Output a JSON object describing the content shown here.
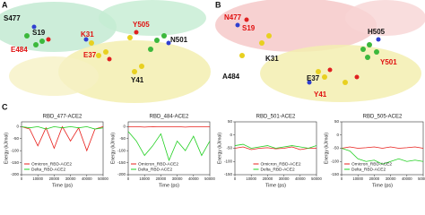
{
  "panels": {
    "A": {
      "label": "A",
      "residues": [
        "S477",
        "S19",
        "K31",
        "Y505",
        "N501",
        "E484",
        "E37",
        "Y41"
      ]
    },
    "B": {
      "label": "B",
      "residues": [
        "N477",
        "S19",
        "K31",
        "H505",
        "Y501",
        "A484",
        "E37",
        "Y41"
      ]
    },
    "C": {
      "label": "C"
    }
  },
  "chart_data": [
    {
      "type": "line",
      "title": "RBD_477-ACE2",
      "xlabel": "Time (ps)",
      "ylabel": "Energy (kJ/mol)",
      "x": [
        0,
        5000,
        10000,
        15000,
        20000,
        25000,
        30000,
        35000,
        40000,
        45000,
        50000
      ],
      "xlim": [
        0,
        50000
      ],
      "xticks": [
        0,
        10000,
        20000,
        30000,
        40000,
        50000
      ],
      "ylim": [
        -200,
        20
      ],
      "yticks": [
        -200,
        -150,
        -100,
        -50,
        0
      ],
      "legend": "lower left",
      "series": [
        {
          "name": "Omicron_RBD-ACE2",
          "color": "#e8201c",
          "values": [
            0,
            -10,
            -80,
            -5,
            -90,
            0,
            -60,
            -5,
            -100,
            -10,
            0
          ]
        },
        {
          "name": "Delta_RBD-ACE2",
          "color": "#22d022",
          "values": [
            0,
            -5,
            0,
            -10,
            0,
            -5,
            0,
            -5,
            0,
            -10,
            -5
          ]
        }
      ]
    },
    {
      "type": "line",
      "title": "RBD_484-ACE2",
      "xlabel": "Time (ps)",
      "ylabel": "Energy (kJ/mol)",
      "x": [
        0,
        5000,
        10000,
        15000,
        20000,
        25000,
        30000,
        35000,
        40000,
        45000,
        50000
      ],
      "xlim": [
        0,
        50000
      ],
      "xticks": [
        0,
        10000,
        20000,
        30000,
        40000,
        50000
      ],
      "ylim": [
        -200,
        20
      ],
      "yticks": [
        -200,
        -150,
        -100,
        -50,
        0
      ],
      "legend": "lower left",
      "series": [
        {
          "name": "Omicron_RBD-ACE2",
          "color": "#e8201c",
          "values": [
            0,
            0,
            -2,
            0,
            -1,
            0,
            0,
            -2,
            0,
            0,
            0
          ]
        },
        {
          "name": "Delta_RBD-ACE2",
          "color": "#22d022",
          "values": [
            -20,
            -60,
            -120,
            -80,
            -30,
            -140,
            -60,
            -100,
            -40,
            -120,
            -60
          ]
        }
      ]
    },
    {
      "type": "line",
      "title": "RBD_501-ACE2",
      "xlabel": "Time (ps)",
      "ylabel": "Energy (kJ/mol)",
      "x": [
        0,
        5000,
        10000,
        15000,
        20000,
        25000,
        30000,
        35000,
        40000,
        45000,
        50000
      ],
      "xlim": [
        0,
        50000
      ],
      "xticks": [
        0,
        10000,
        20000,
        30000,
        40000,
        50000
      ],
      "ylim": [
        -150,
        50
      ],
      "yticks": [
        -150,
        -100,
        -50,
        0,
        50
      ],
      "legend": "lower center",
      "series": [
        {
          "name": "Omicron_RBD-ACE2",
          "color": "#e8201c",
          "values": [
            -50,
            -45,
            -55,
            -50,
            -48,
            -52,
            -50,
            -45,
            -55,
            -50,
            -50
          ]
        },
        {
          "name": "Delta_RBD-ACE2",
          "color": "#22d022",
          "values": [
            -40,
            -35,
            -50,
            -45,
            -40,
            -50,
            -45,
            -40,
            -45,
            -50,
            -40
          ]
        }
      ]
    },
    {
      "type": "line",
      "title": "RBD_505-ACE2",
      "xlabel": "Time (ps)",
      "ylabel": "Energy (kJ/mol)",
      "x": [
        0,
        5000,
        10000,
        15000,
        20000,
        25000,
        30000,
        35000,
        40000,
        45000,
        50000
      ],
      "xlim": [
        0,
        50000
      ],
      "xticks": [
        0,
        10000,
        20000,
        30000,
        40000,
        50000
      ],
      "ylim": [
        -150,
        50
      ],
      "yticks": [
        -150,
        -100,
        -50,
        0,
        50
      ],
      "legend": "lower left",
      "series": [
        {
          "name": "Omicron_RBD-ACE2",
          "color": "#e8201c",
          "values": [
            -50,
            -45,
            -50,
            -48,
            -45,
            -50,
            -45,
            -50,
            -48,
            -45,
            -50
          ]
        },
        {
          "name": "Delta_RBD-ACE2",
          "color": "#22d022",
          "values": [
            -50,
            -60,
            -90,
            -100,
            -95,
            -110,
            -100,
            -90,
            -100,
            -95,
            -100
          ]
        }
      ]
    }
  ]
}
